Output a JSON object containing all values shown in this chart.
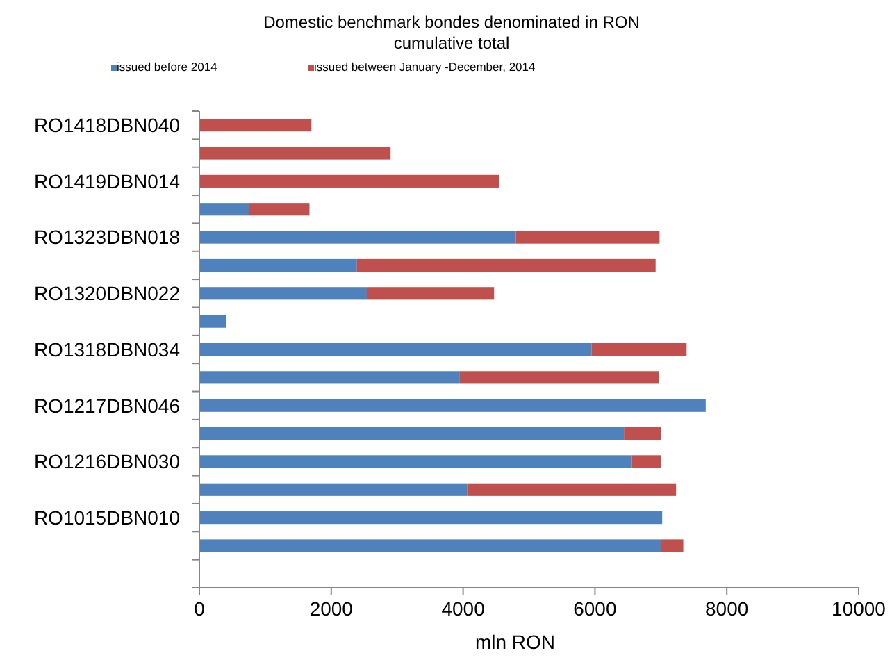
{
  "chart_data": {
    "type": "bar",
    "orientation": "horizontal",
    "stacked": true,
    "title": "Domestic benchmark bondes denominated in RON\ncumulative total",
    "xlabel": "mln RON",
    "categories": [
      "RO1418DBN040",
      null,
      "RO1419DBN014",
      null,
      "RO1323DBN018",
      null,
      "RO1320DBN022",
      null,
      "RO1318DBN034",
      null,
      "RO1217DBN046",
      null,
      "RO1216DBN030",
      null,
      "RO1015DBN010",
      null,
      null
    ],
    "series": [
      {
        "name": "issued before 2014",
        "color": "#4f81bd",
        "values": [
          null,
          null,
          null,
          750,
          4800,
          2390,
          2550,
          410,
          5950,
          3950,
          7680,
          6440,
          6560,
          4060,
          7020,
          7000,
          null
        ]
      },
      {
        "name": "issued between January -December, 2014",
        "color": "#c0504d",
        "values": [
          1700,
          2900,
          4550,
          920,
          2180,
          4530,
          1920,
          null,
          1440,
          3020,
          null,
          560,
          440,
          3170,
          null,
          340,
          null
        ]
      }
    ],
    "xlim": [
      0,
      10000
    ],
    "xticks": [
      0,
      2000,
      4000,
      6000,
      8000,
      10000
    ],
    "grid": false,
    "legend": "top"
  }
}
